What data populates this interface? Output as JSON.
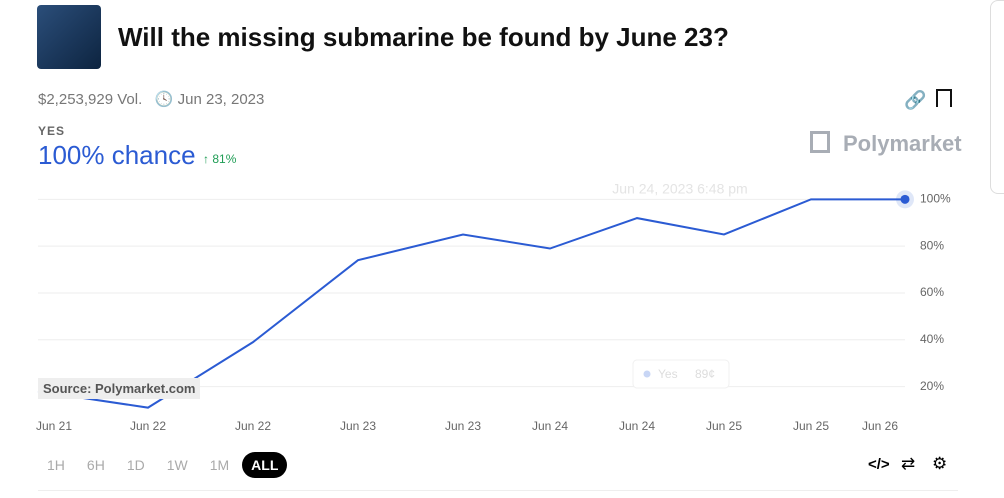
{
  "header": {
    "title": "Will the missing submarine be found by June 23?",
    "volume": "$2,253,929 Vol.",
    "end_date": "Jun 23, 2023",
    "brand": "Polymarket"
  },
  "outcome": {
    "label": "YES",
    "chance": "100% chance",
    "change": "81%"
  },
  "chart_data": {
    "type": "line",
    "categories": [
      "Jun 21",
      "Jun 22",
      "Jun 22",
      "Jun 23",
      "Jun 23",
      "Jun 24",
      "Jun 24",
      "Jun 25",
      "Jun 25",
      "Jun 26",
      null
    ],
    "series": [
      {
        "name": "Yes",
        "color": "#2b5bd3",
        "values": [
          18,
          11,
          39,
          74,
          85,
          79,
          92,
          85,
          100,
          100,
          100
        ]
      }
    ],
    "ylim": [
      10,
      104
    ],
    "yticks": [
      {
        "value": 100,
        "label": "100%"
      },
      {
        "value": 80,
        "label": "80%"
      },
      {
        "value": 60,
        "label": "60%"
      },
      {
        "value": 40,
        "label": "40%"
      },
      {
        "value": 20,
        "label": "20%"
      }
    ],
    "grid": true,
    "hover_date": "Jun 24, 2023 6:48 pm",
    "tooltip_value": "89¢",
    "source": "Source: Polymarket.com"
  },
  "range_buttons": [
    "1H",
    "6H",
    "1D",
    "1W",
    "1M",
    "ALL"
  ]
}
